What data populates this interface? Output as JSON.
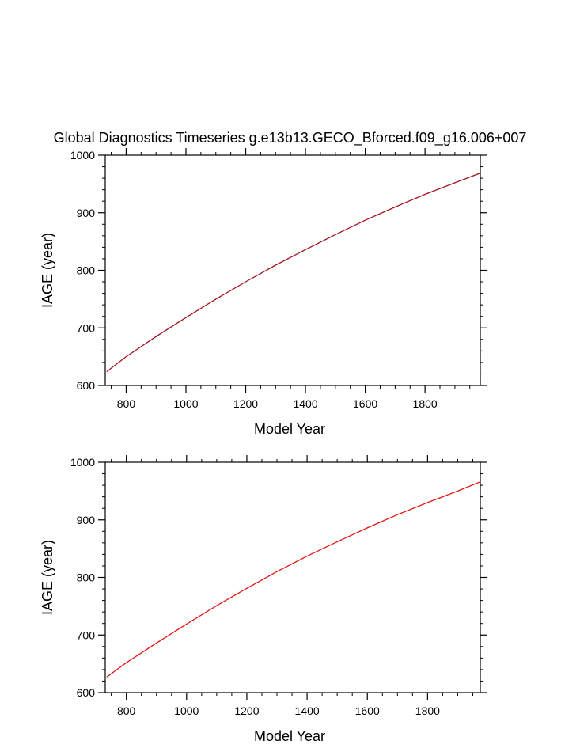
{
  "title": "Global Diagnostics Timeseries g.e13b13.GECO_Bforced.f09_g16.006+007",
  "colors": {
    "series_top": "#a0141e",
    "series_bottom": "#e81414",
    "axis": "#000000"
  },
  "chart_data": [
    {
      "type": "line",
      "xlabel": "Model Year",
      "ylabel": "IAGE (year)",
      "xlim": [
        730,
        1985
      ],
      "ylim": [
        600,
        1000
      ],
      "xticks": [
        "800",
        "1000",
        "1200",
        "1400",
        "1600",
        "1800"
      ],
      "yticks": [
        "600",
        "700",
        "800",
        "900",
        "1000"
      ],
      "grid": false,
      "series": [
        {
          "x": [
            735,
            800,
            900,
            1000,
            1100,
            1200,
            1300,
            1400,
            1500,
            1600,
            1700,
            1800,
            1900,
            1985
          ],
          "y": [
            624,
            650,
            685,
            718,
            750,
            780,
            809,
            836,
            862,
            887,
            910,
            932,
            952,
            969
          ]
        }
      ]
    },
    {
      "type": "line",
      "xlabel": "Model Year",
      "ylabel": "IAGE (year)",
      "xlim": [
        730,
        1975
      ],
      "ylim": [
        600,
        1000
      ],
      "xticks": [
        "800",
        "1000",
        "1200",
        "1400",
        "1600",
        "1800"
      ],
      "yticks": [
        "600",
        "700",
        "800",
        "900",
        "1000"
      ],
      "grid": false,
      "series": [
        {
          "x": [
            735,
            800,
            900,
            1000,
            1100,
            1200,
            1300,
            1400,
            1500,
            1600,
            1700,
            1800,
            1900,
            1975
          ],
          "y": [
            627,
            652,
            686,
            719,
            751,
            781,
            810,
            837,
            862,
            886,
            909,
            930,
            950,
            966
          ]
        }
      ]
    }
  ]
}
